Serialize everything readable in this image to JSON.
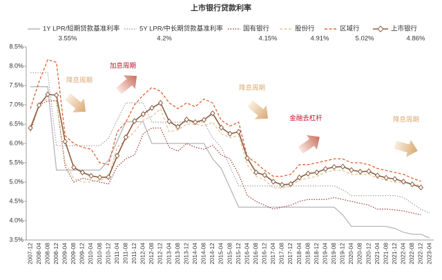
{
  "chart_data": {
    "type": "line",
    "title": "上市银行贷款利率",
    "categories": [
      "2007-12",
      "2008-04",
      "2008-08",
      "2008-12",
      "2009-04",
      "2009-08",
      "2009-12",
      "2010-04",
      "2010-08",
      "2010-12",
      "2011-04",
      "2011-08",
      "2011-12",
      "2012-04",
      "2012-08",
      "2012-12",
      "2013-04",
      "2013-08",
      "2013-12",
      "2014-04",
      "2014-08",
      "2014-12",
      "2015-04",
      "2015-08",
      "2015-12",
      "2016-04",
      "2016-08",
      "2016-12",
      "2017-04",
      "2017-08",
      "2017-12",
      "2018-04",
      "2018-08",
      "2018-12",
      "2019-04",
      "2019-08",
      "2019-12",
      "2020-04",
      "2020-08",
      "2020-12",
      "2021-04",
      "2021-08",
      "2021-12",
      "2022-04",
      "2022-08",
      "2022-12",
      "2023-04"
    ],
    "series": [
      {
        "name": "1Y LPR/短期贷款基准利率",
        "legend_label": "3.55%",
        "color": "#b4b4bc",
        "dash": "solid",
        "values": [
          7.47,
          7.47,
          7.47,
          5.31,
          5.31,
          5.31,
          5.31,
          5.31,
          5.31,
          5.56,
          6.06,
          6.56,
          6.56,
          6.56,
          6.0,
          6.0,
          6.0,
          6.0,
          6.0,
          6.0,
          6.0,
          5.6,
          5.35,
          4.85,
          4.35,
          4.35,
          4.35,
          4.35,
          4.35,
          4.35,
          4.35,
          4.35,
          4.35,
          4.35,
          4.35,
          4.35,
          4.15,
          3.85,
          3.85,
          3.85,
          3.85,
          3.85,
          3.8,
          3.7,
          3.65,
          3.65,
          3.55
        ]
      },
      {
        "name": "5Y LPR/中长期贷款基准利率",
        "legend_label": "4.2%",
        "color": "#a4a4ac",
        "dash": "dotted",
        "values": [
          7.83,
          7.83,
          7.83,
          5.94,
          5.94,
          5.94,
          5.94,
          5.94,
          5.94,
          6.14,
          6.6,
          7.05,
          7.05,
          7.05,
          6.55,
          6.55,
          6.55,
          6.55,
          6.55,
          6.55,
          6.55,
          6.15,
          5.9,
          5.4,
          4.9,
          4.9,
          4.9,
          4.9,
          4.9,
          4.9,
          4.9,
          4.9,
          4.9,
          4.9,
          4.9,
          4.9,
          4.8,
          4.65,
          4.65,
          4.65,
          4.65,
          4.65,
          4.65,
          4.6,
          4.45,
          4.3,
          4.2
        ]
      },
      {
        "name": "国有银行",
        "legend_label": "4.15%",
        "color": "#a0413c",
        "dash": "dotted",
        "values": [
          6.3,
          7.0,
          7.1,
          7.1,
          5.4,
          5.0,
          5.1,
          5.05,
          5.0,
          4.95,
          5.4,
          5.6,
          5.7,
          6.25,
          6.4,
          6.4,
          5.9,
          5.8,
          6.0,
          5.9,
          5.85,
          5.95,
          5.7,
          5.6,
          5.2,
          4.65,
          4.5,
          4.4,
          4.3,
          4.35,
          4.4,
          4.5,
          4.55,
          4.55,
          4.55,
          4.6,
          4.55,
          4.5,
          4.45,
          4.4,
          4.3,
          4.3,
          4.28,
          4.25,
          4.2,
          4.15,
          null
        ]
      },
      {
        "name": "股份行",
        "legend_label": "4.91%",
        "color": "#dfc79c",
        "dash": "dashed",
        "values": [
          6.3,
          7.05,
          7.15,
          7.1,
          5.5,
          5.1,
          5.0,
          5.0,
          5.05,
          5.1,
          5.9,
          6.1,
          6.3,
          6.6,
          6.7,
          6.9,
          6.3,
          6.35,
          6.5,
          6.5,
          6.45,
          6.55,
          6.25,
          6.15,
          6.2,
          5.45,
          5.15,
          5.05,
          4.85,
          4.85,
          4.9,
          5.05,
          5.1,
          5.15,
          5.25,
          5.3,
          5.3,
          5.2,
          5.2,
          5.2,
          5.1,
          5.05,
          5.0,
          4.98,
          4.95,
          4.91,
          null
        ]
      },
      {
        "name": "区域行",
        "legend_label": "5.02%",
        "color": "#e0602f",
        "dash": "dashed",
        "values": [
          6.9,
          7.6,
          8.17,
          8.1,
          6.2,
          6.0,
          5.9,
          5.85,
          5.5,
          5.45,
          6.3,
          6.55,
          7.0,
          7.25,
          7.45,
          7.35,
          7.05,
          6.9,
          7.05,
          6.95,
          7.15,
          7.05,
          6.6,
          6.45,
          6.55,
          5.65,
          5.5,
          5.3,
          5.15,
          5.15,
          5.2,
          5.45,
          5.45,
          5.5,
          5.55,
          5.6,
          5.6,
          5.5,
          5.5,
          5.45,
          5.35,
          5.3,
          5.25,
          5.2,
          5.1,
          5.02,
          null
        ]
      },
      {
        "name": "上市银行",
        "legend_label": "4.86%",
        "color": "#8b5a3c",
        "dash": "solid",
        "marker": "diamond",
        "values": [
          6.4,
          6.99,
          7.27,
          7.25,
          6.05,
          5.38,
          5.25,
          5.16,
          5.12,
          5.13,
          5.68,
          6.16,
          6.58,
          6.76,
          6.92,
          7.05,
          6.57,
          6.43,
          6.62,
          6.55,
          6.61,
          6.78,
          6.41,
          6.25,
          6.3,
          5.62,
          5.25,
          5.18,
          5.01,
          4.93,
          4.95,
          5.12,
          5.22,
          5.25,
          5.34,
          5.39,
          5.4,
          5.31,
          5.27,
          5.28,
          5.17,
          5.11,
          5.08,
          5.01,
          4.94,
          4.86,
          null
        ]
      }
    ],
    "ylim": [
      3.5,
      8.5
    ],
    "yticks": [
      {
        "value": 3.5,
        "label": "3.5%"
      },
      {
        "value": 4.0,
        "label": "4.0%"
      },
      {
        "value": 4.5,
        "label": "4.5%"
      },
      {
        "value": 5.0,
        "label": "5.0%"
      },
      {
        "value": 5.5,
        "label": "5.5%"
      },
      {
        "value": 6.0,
        "label": "6.0%"
      },
      {
        "value": 6.5,
        "label": "6.5%"
      },
      {
        "value": 7.0,
        "label": "7.0%"
      },
      {
        "value": 7.5,
        "label": "7.5%"
      },
      {
        "value": 8.0,
        "label": "8.0%"
      },
      {
        "value": 8.5,
        "label": "8.5%"
      }
    ],
    "grid": false,
    "annotations": [
      {
        "text": "降息周期",
        "color": "#d9a873"
      },
      {
        "text": "加息周期",
        "color": "#c8102e"
      },
      {
        "text": "降息周期",
        "color": "#d9a873"
      },
      {
        "text": "金融去杠杆",
        "color": "#c8102e"
      },
      {
        "text": "降息周期",
        "color": "#d9a873"
      }
    ]
  }
}
